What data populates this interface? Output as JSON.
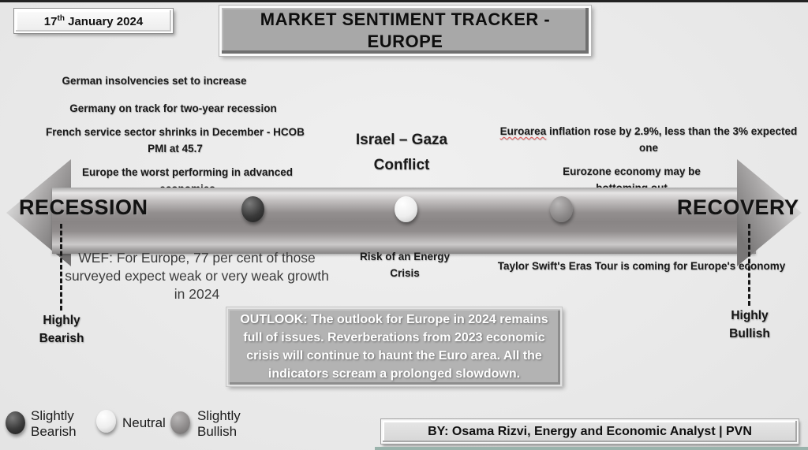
{
  "slide": {
    "date": {
      "day": "17",
      "ordinal": "th",
      "rest": " January 2024"
    },
    "title": "MARKET SENTIMENT TRACKER - EUROPE",
    "byline": "BY: Osama Rizvi, Energy and Economic Analyst | PVN"
  },
  "headlines": {
    "german_insolvencies": "German insolvencies set to increase",
    "germany_recession": "Germany on track for two-year recession",
    "french_pmi": "French service sector shrinks in December - HCOB PMI at 45.7",
    "europe_worst": "Europe the worst performing  in advanced economies",
    "israel_gaza": "Israel – Gaza Conflict",
    "euroarea_word": "Euroarea",
    "euroarea_rest": " inflation rose by 2.9%, less than the 3% expected one",
    "eurozone_bottoming": "Eurozone economy may be bottoming out",
    "wef": "WEF: For Europe, 77 per cent of those surveyed expect weak or very weak growth in 2024",
    "energy_crisis": "Risk of an Energy Crisis",
    "taylor_swift": "Taylor Swift's Eras Tour is coming for Europe's economy"
  },
  "axis": {
    "left_label": "RECESSION",
    "right_label": "RECOVERY",
    "left_endpoint": "Highly Bearish",
    "right_endpoint": "Highly Bullish",
    "markers": [
      {
        "name": "slightly-bearish",
        "color": "#3a3a3a",
        "position_pct": 28
      },
      {
        "name": "neutral",
        "color": "#efefef",
        "position_pct": 50
      },
      {
        "name": "slightly-bullish",
        "color": "#8c8c8c",
        "position_pct": 72
      }
    ]
  },
  "outlook": "OUTLOOK: The outlook for Europe in 2024 remains full of issues. Reverberations from 2023 economic crisis will continue to haunt the Euro area. All the indicators scream a prolonged slowdown.",
  "legend": {
    "items": [
      {
        "label": "Slightly Bearish",
        "type": "slightly-bearish",
        "color": "#3a3a3a"
      },
      {
        "label": "Neutral",
        "type": "neutral",
        "color": "#efefef"
      },
      {
        "label": "Slightly Bullish",
        "type": "slightly-bullish",
        "color": "#8c8c8c"
      }
    ]
  },
  "colors": {
    "slide_bg": "#ebebeb",
    "title_box_bg": "#a8a8a8",
    "outlook_box_bg": "#b3b3b3",
    "byline_box_bg": "#dcdcdc",
    "arrow_gray": "#8e8b8b",
    "footer_strip": "#9ab3ac",
    "spellcheck_underline": "#e05252"
  }
}
